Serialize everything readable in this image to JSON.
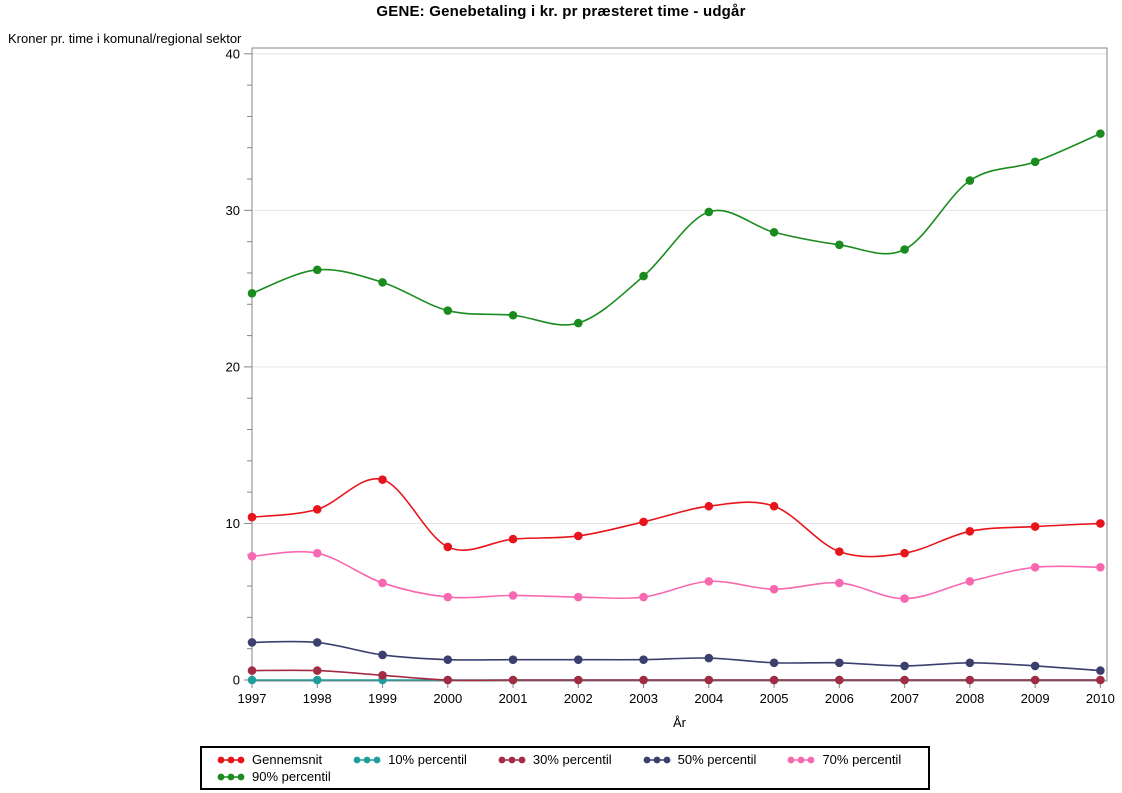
{
  "title": "GENE: Genebetaling i kr. pr præsteret time - udgår",
  "chart_data": {
    "type": "line",
    "x": [
      1997,
      1998,
      1999,
      2000,
      2001,
      2002,
      2003,
      2004,
      2005,
      2006,
      2007,
      2008,
      2009,
      2010
    ],
    "xlabel": "År",
    "ylabel": "Kroner pr. time i komunal/regional sektor",
    "ylim": [
      0,
      40
    ],
    "yticks": [
      0,
      10,
      20,
      30,
      40
    ],
    "y_minor_tick_step": 2,
    "grid": "horizontal major gridlines only",
    "legend_position": "bottom",
    "marker_style": "filled circles on smoothed lines",
    "series": [
      {
        "name": "Gennemsnit",
        "color": "#e8141c",
        "values": [
          10.4,
          10.9,
          12.8,
          8.5,
          9.0,
          9.2,
          10.1,
          11.1,
          11.1,
          8.2,
          8.1,
          9.5,
          9.8,
          10.0
        ]
      },
      {
        "name": "10% percentil",
        "color": "#1f9e9e",
        "values": [
          0,
          0,
          0,
          0,
          0,
          0,
          0,
          0,
          0,
          0,
          0,
          0,
          0,
          0
        ]
      },
      {
        "name": "30% percentil",
        "color": "#a32c44",
        "values": [
          0.6,
          0.6,
          0.3,
          0,
          0,
          0,
          0,
          0,
          0,
          0,
          0,
          0,
          0,
          0
        ]
      },
      {
        "name": "50% percentil",
        "color": "#3a3f6e",
        "values": [
          2.4,
          2.4,
          1.6,
          1.3,
          1.3,
          1.3,
          1.3,
          1.4,
          1.1,
          1.1,
          0.9,
          1.1,
          0.9,
          0.6
        ]
      },
      {
        "name": "70% percentil",
        "color": "#f768b0",
        "values": [
          7.9,
          8.1,
          6.2,
          5.3,
          5.4,
          5.3,
          5.3,
          6.3,
          5.8,
          6.2,
          5.2,
          6.3,
          7.2,
          7.2
        ]
      },
      {
        "name": "90% percentil",
        "color": "#1a8c1f",
        "values": [
          24.7,
          26.2,
          25.4,
          23.6,
          23.3,
          22.8,
          25.8,
          29.9,
          28.6,
          27.8,
          27.5,
          31.9,
          33.1,
          34.9
        ]
      }
    ]
  },
  "colors": {
    "background": "#ffffff",
    "axis": "#868686",
    "grid": "#e4e4e4",
    "text": "#000000",
    "legend_border": "#000000"
  }
}
